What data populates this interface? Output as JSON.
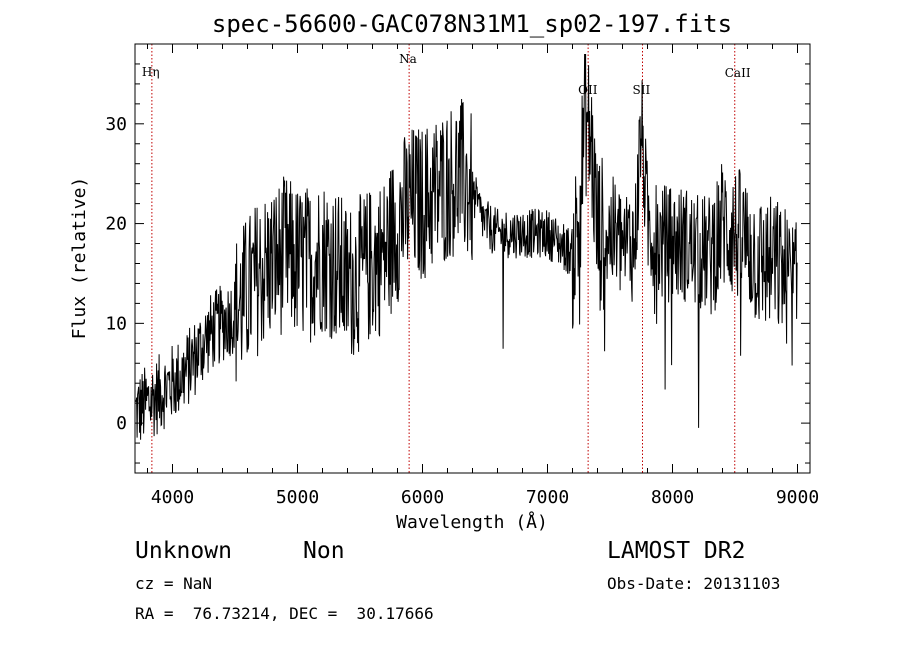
{
  "chart_data": {
    "type": "line",
    "title": "spec-56600-GAC078N31M1_sp02-197.fits",
    "xlabel": "Wavelength (Å)",
    "ylabel": "Flux (relative)",
    "xlim": [
      3700,
      9100
    ],
    "ylim": [
      -5,
      38
    ],
    "xticks": [
      4000,
      5000,
      6000,
      7000,
      8000,
      9000
    ],
    "yticks": [
      0,
      10,
      20,
      30
    ],
    "grid": false,
    "lines": [
      {
        "label": "Hη",
        "wavelength": 3835
      },
      {
        "label": "Na",
        "wavelength": 5893
      },
      {
        "label": "OII",
        "wavelength": 7325
      },
      {
        "label": "SII",
        "wavelength": 7760
      },
      {
        "label": "CaII",
        "wavelength": 8498
      }
    ],
    "series": [
      {
        "x": [
          3700,
          3800,
          3900,
          4000,
          4100,
          4200,
          4300,
          4400,
          4500,
          4600,
          4700,
          4800,
          4900,
          5000,
          5100,
          5200,
          5300,
          5400,
          5500,
          5600,
          5700,
          5800,
          5900,
          6000,
          6100,
          6200,
          6300,
          6400,
          6500,
          6600,
          6700,
          6800,
          6900,
          7000,
          7100,
          7200,
          7250,
          7300,
          7350,
          7400,
          7500,
          7600,
          7700,
          7750,
          7800,
          7900,
          8000,
          8100,
          8200,
          8300,
          8400,
          8500,
          8600,
          8700,
          8800,
          8900,
          9000
        ],
        "y": [
          1,
          2,
          3,
          4,
          5,
          7,
          9,
          10,
          11,
          13,
          15,
          16,
          17,
          16,
          16,
          17,
          16,
          14,
          15,
          16,
          17,
          20,
          22,
          22,
          23,
          24,
          25,
          23,
          20,
          19,
          19,
          19,
          19,
          19,
          18,
          17,
          20,
          31,
          28,
          19,
          19,
          18,
          18,
          30,
          20,
          18,
          18,
          18,
          17,
          17,
          20,
          19,
          18,
          16,
          16,
          15,
          13
        ]
      }
    ]
  },
  "info": {
    "object_class": "Unknown",
    "subclass": "Non",
    "survey": "LAMOST DR2",
    "redshift": "cz = NaN",
    "obs_date": "Obs-Date: 20131103",
    "coords": "RA =  76.73214, DEC =  30.17666"
  }
}
